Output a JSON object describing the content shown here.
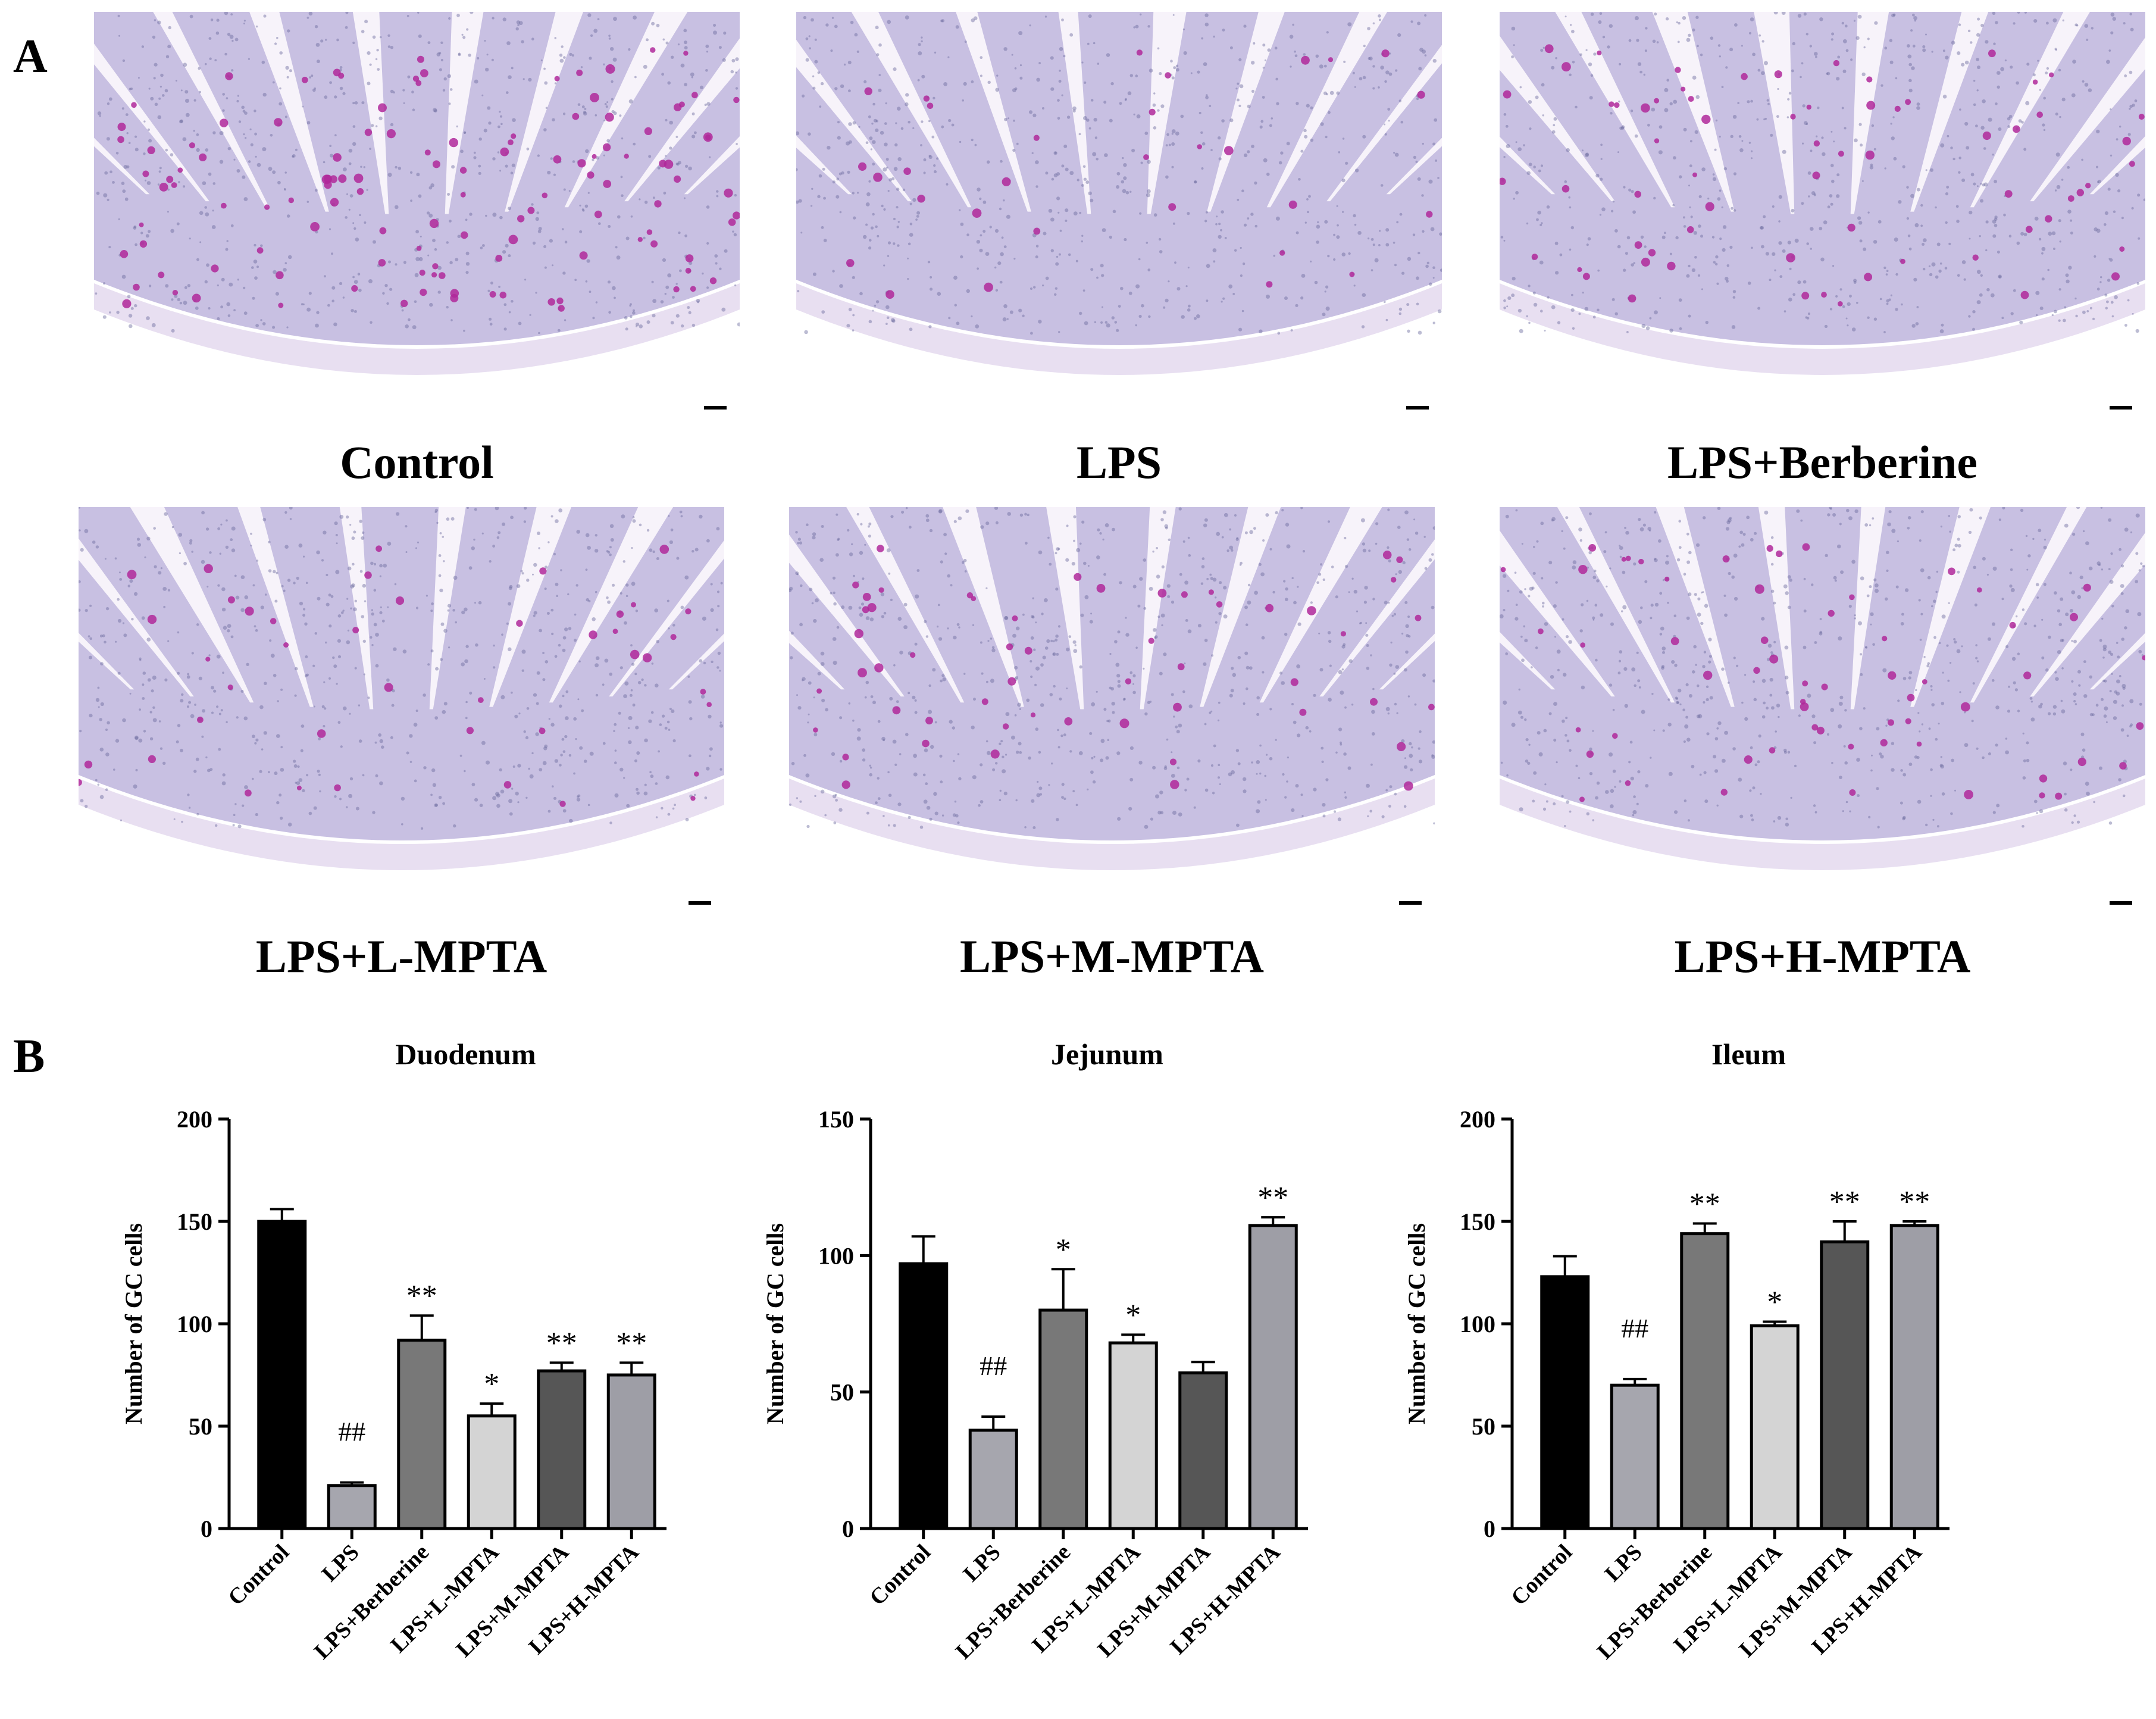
{
  "panel_a": {
    "label": "A",
    "images": [
      {
        "caption": "Control",
        "goblet_density": 1.0
      },
      {
        "caption": "LPS",
        "goblet_density": 0.25
      },
      {
        "caption": "LPS+Berberine",
        "goblet_density": 0.55
      },
      {
        "caption": "LPS+L-MPTA",
        "goblet_density": 0.35
      },
      {
        "caption": "LPS+M-MPTA",
        "goblet_density": 0.45
      },
      {
        "caption": "LPS+H-MPTA",
        "goblet_density": 0.5
      }
    ],
    "colors": {
      "tissue": "#c8c0e2",
      "stroma": "#e6dcef",
      "goblet": "#b0289a",
      "nuclei": "#6a6a9e",
      "background": "#ffffff"
    }
  },
  "panel_b": {
    "label": "B"
  },
  "chart_data": [
    {
      "type": "bar",
      "title": "Duodenum",
      "ylabel": "Number of GC cells",
      "ylim": [
        0,
        200
      ],
      "yticks": [
        "0",
        "50",
        "100",
        "150",
        "200"
      ],
      "categories": [
        "Control",
        "LPS",
        "LPS+Berberine",
        "LPS+L-MPTA",
        "LPS+M-MPTA",
        "LPS+H-MPTA"
      ],
      "values": [
        150,
        21,
        92,
        55,
        77,
        75
      ],
      "errors": [
        6,
        1.5,
        12,
        6,
        4,
        6
      ],
      "annotations": [
        "",
        "##",
        "**",
        "*",
        "**",
        "**"
      ],
      "colors": [
        "#000000",
        "#a6a6ae",
        "#787878",
        "#d4d4d4",
        "#565656",
        "#9e9ea6"
      ]
    },
    {
      "type": "bar",
      "title": "Jejunum",
      "ylabel": "Number of GC cells",
      "ylim": [
        0,
        150
      ],
      "yticks": [
        "0",
        "50",
        "100",
        "150"
      ],
      "categories": [
        "Control",
        "LPS",
        "LPS+Berberine",
        "LPS+L-MPTA",
        "LPS+M-MPTA",
        "LPS+H-MPTA"
      ],
      "values": [
        97,
        36,
        80,
        68,
        57,
        111
      ],
      "errors": [
        10,
        5,
        15,
        3,
        4,
        3
      ],
      "annotations": [
        "",
        "##",
        "*",
        "*",
        "",
        "**"
      ],
      "colors": [
        "#000000",
        "#a6a6ae",
        "#787878",
        "#d4d4d4",
        "#565656",
        "#9e9ea6"
      ]
    },
    {
      "type": "bar",
      "title": "Ileum",
      "ylabel": "Number of GC cells",
      "ylim": [
        0,
        200
      ],
      "yticks": [
        "0",
        "50",
        "100",
        "150",
        "200"
      ],
      "categories": [
        "Control",
        "LPS",
        "LPS+Berberine",
        "LPS+L-MPTA",
        "LPS+M-MPTA",
        "LPS+H-MPTA"
      ],
      "values": [
        123,
        70,
        144,
        99,
        140,
        148
      ],
      "errors": [
        10,
        3,
        5,
        2,
        10,
        2
      ],
      "annotations": [
        "",
        "##",
        "**",
        "*",
        "**",
        "**"
      ],
      "colors": [
        "#000000",
        "#a6a6ae",
        "#787878",
        "#d4d4d4",
        "#565656",
        "#9e9ea6"
      ]
    }
  ]
}
